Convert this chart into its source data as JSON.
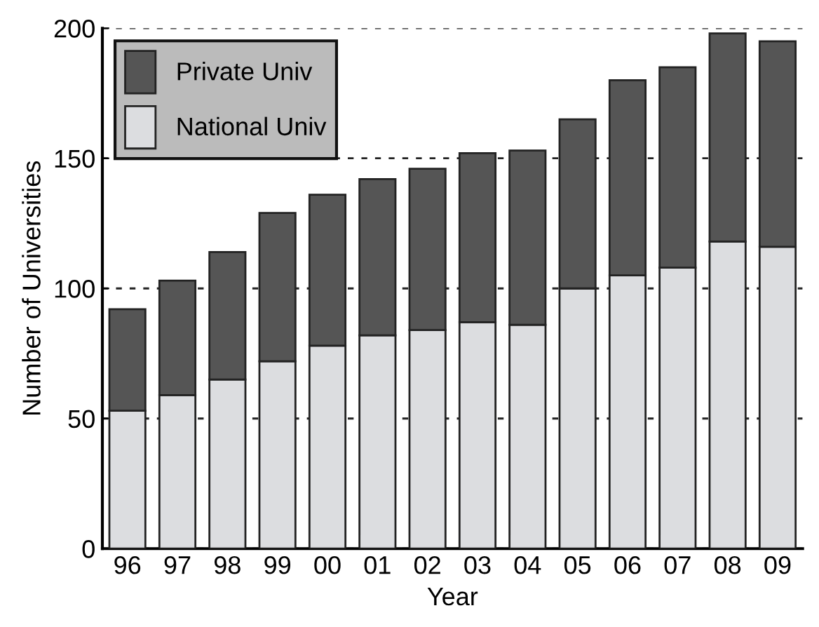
{
  "chart_data": {
    "type": "bar",
    "stacked": true,
    "xlabel": "Year",
    "ylabel": "Number of Universities",
    "categories": [
      "96",
      "97",
      "98",
      "99",
      "00",
      "01",
      "02",
      "03",
      "04",
      "05",
      "06",
      "07",
      "08",
      "09"
    ],
    "series": [
      {
        "name": "National Univ",
        "color": "#dcdde0",
        "values": [
          53,
          59,
          65,
          72,
          78,
          82,
          84,
          87,
          86,
          100,
          105,
          108,
          118,
          116
        ]
      },
      {
        "name": "Private Univ",
        "color": "#555555",
        "values": [
          39,
          44,
          49,
          57,
          58,
          60,
          62,
          65,
          67,
          65,
          75,
          77,
          80,
          79
        ]
      }
    ],
    "ylim": [
      0,
      200
    ],
    "yticks": [
      0,
      50,
      100,
      150,
      200
    ],
    "grid": "y",
    "legend": "top left"
  }
}
